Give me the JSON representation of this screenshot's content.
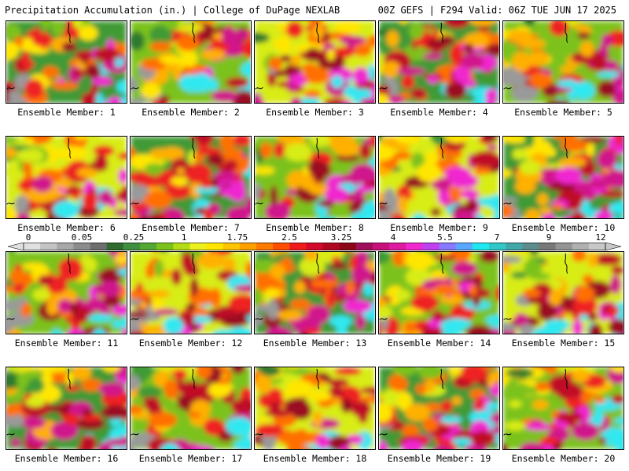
{
  "header": {
    "left": "Precipitation Accumulation (in.) | College of DuPage NEXLAB",
    "right": "00Z GEFS | F294 Valid: 06Z TUE JUN 17 2025"
  },
  "scale": {
    "labels": [
      "0",
      "0.05",
      "0.25",
      "1",
      "1.75",
      "2.5",
      "3.25",
      "4",
      "5.5",
      "7",
      "9",
      "12"
    ],
    "colors": [
      "#e0e0e0",
      "#c4c4c4",
      "#a8a8a8",
      "#8c8c8c",
      "#6e6e6e",
      "#2f6b2f",
      "#3f8f3f",
      "#52a832",
      "#7cc21c",
      "#b4dc14",
      "#ecf01c",
      "#ffe600",
      "#ffc400",
      "#ffa000",
      "#ff7a00",
      "#ff4e00",
      "#f01c1c",
      "#d40a2a",
      "#b00820",
      "#8c0618",
      "#a0105a",
      "#c8107a",
      "#e01aa0",
      "#f028d0",
      "#c040f0",
      "#8878ff",
      "#58a8ff",
      "#20e8f0",
      "#30c8c8",
      "#40a8a8",
      "#5c8c8c",
      "#787878",
      "#949494",
      "#b0b0b0",
      "#c8c8c8"
    ]
  },
  "panels": [
    {
      "label": "Ensemble Member: 1"
    },
    {
      "label": "Ensemble Member: 2"
    },
    {
      "label": "Ensemble Member: 3"
    },
    {
      "label": "Ensemble Member: 4"
    },
    {
      "label": "Ensemble Member: 5"
    },
    {
      "label": "Ensemble Member: 6"
    },
    {
      "label": "Ensemble Member: 7"
    },
    {
      "label": "Ensemble Member: 8"
    },
    {
      "label": "Ensemble Member: 9"
    },
    {
      "label": "Ensemble Member: 10"
    },
    {
      "label": "Ensemble Member: 11"
    },
    {
      "label": "Ensemble Member: 12"
    },
    {
      "label": "Ensemble Member: 13"
    },
    {
      "label": "Ensemble Member: 14"
    },
    {
      "label": "Ensemble Member: 15"
    },
    {
      "label": "Ensemble Member: 16"
    },
    {
      "label": "Ensemble Member: 17"
    },
    {
      "label": "Ensemble Member: 18"
    },
    {
      "label": "Ensemble Member: 19"
    },
    {
      "label": "Ensemble Member: 20"
    }
  ]
}
